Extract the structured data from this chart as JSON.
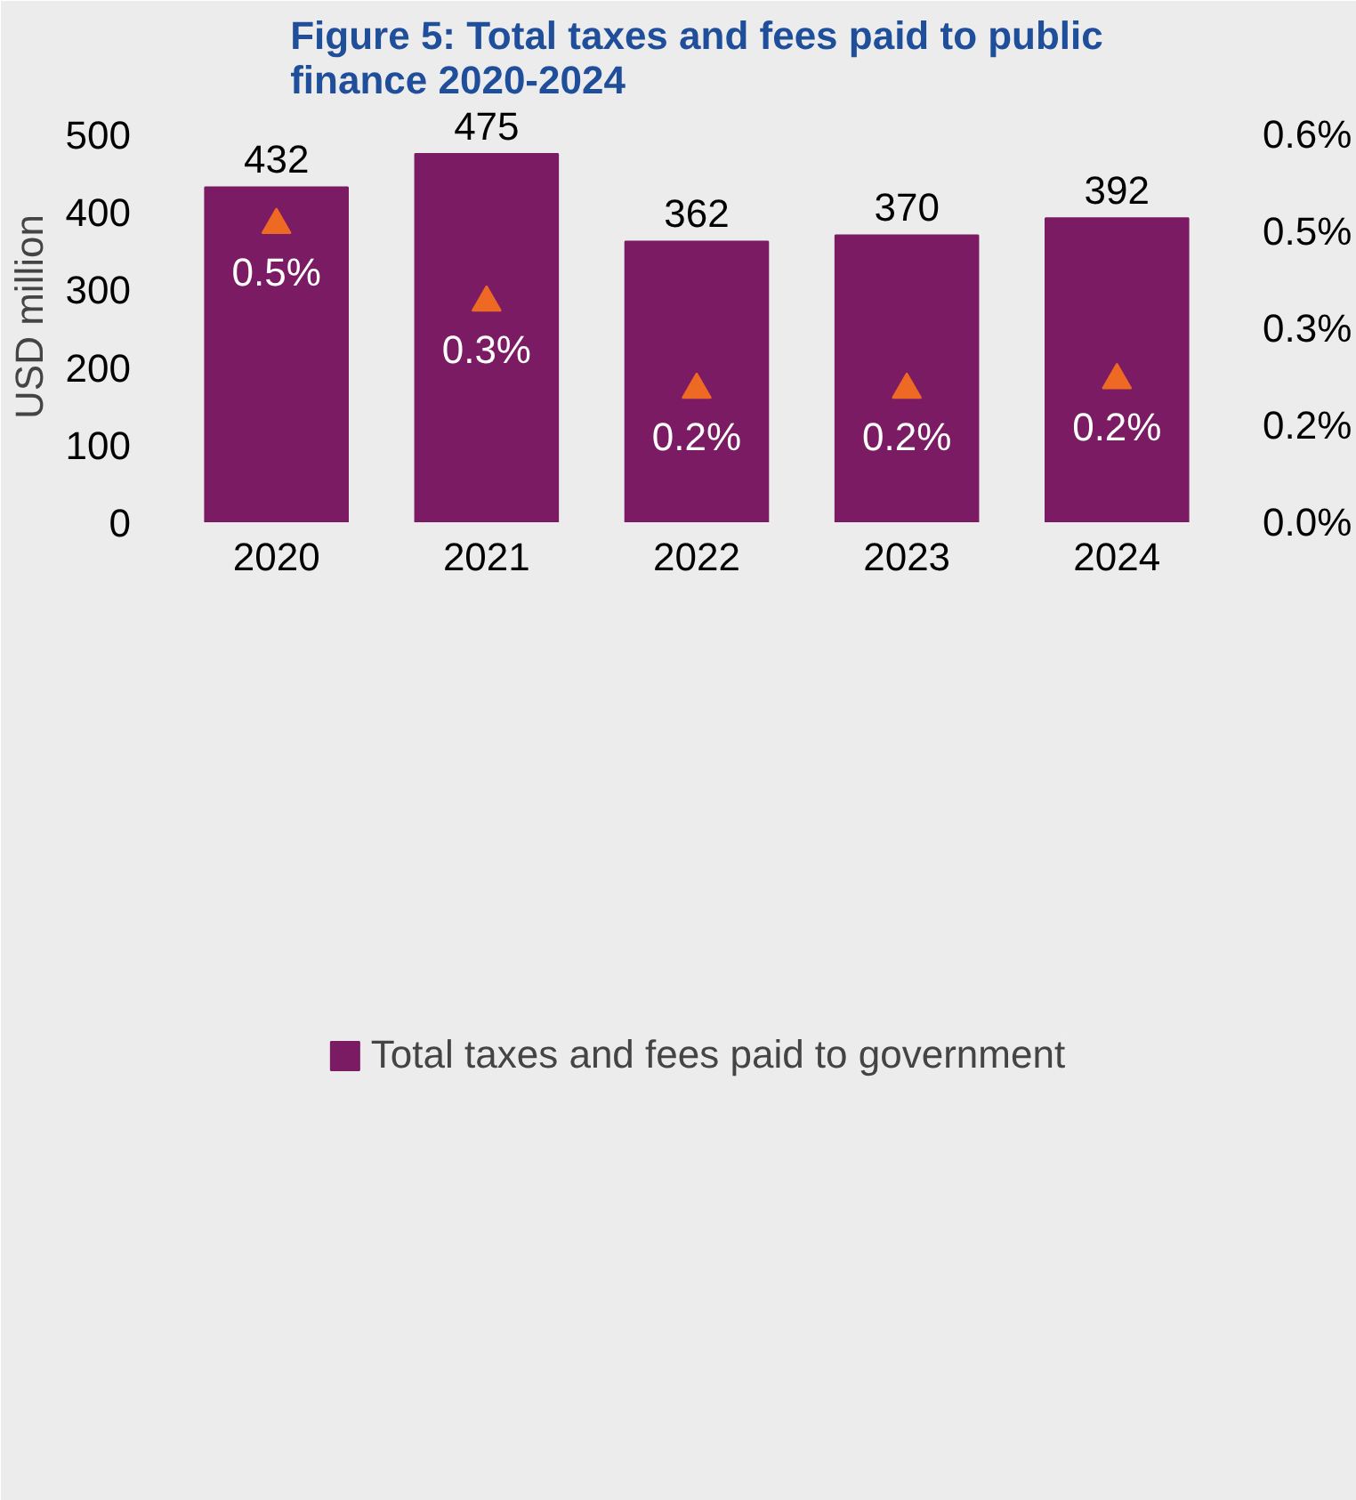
{
  "chart_data": {
    "type": "bar",
    "title": "Figure 5: Total taxes and fees paid to public finance 2020-2024",
    "ylabel": "USD million",
    "categories": [
      "2020",
      "2021",
      "2022",
      "2023",
      "2024"
    ],
    "ylim": [
      0,
      530
    ],
    "yticks": [
      0,
      100,
      200,
      300,
      400,
      500
    ],
    "y2lim": [
      0,
      0.636
    ],
    "y2ticks": [
      {
        "value": 0,
        "label": "0.0%"
      },
      {
        "value": 0.15,
        "label": "0.2%"
      },
      {
        "value": 0.3,
        "label": "0.3%"
      },
      {
        "value": 0.45,
        "label": "0.5%"
      },
      {
        "value": 0.6,
        "label": "0.6%"
      }
    ],
    "legend": "bottom",
    "series": [
      {
        "name": "Total taxes and fees paid to government",
        "color": "#7b1b63",
        "values": [
          432,
          475,
          362,
          370,
          392
        ],
        "value_labels": [
          "432",
          "475",
          "362",
          "370",
          "392"
        ]
      },
      {
        "type": "scatter",
        "axis": "y2",
        "marker": "triangle",
        "color": "#ee6a24",
        "values": [
          0.46,
          0.34,
          0.205,
          0.205,
          0.22
        ],
        "value_labels": [
          "0.5%",
          "0.3%",
          "0.2%",
          "0.2%",
          "0.2%"
        ]
      }
    ]
  }
}
